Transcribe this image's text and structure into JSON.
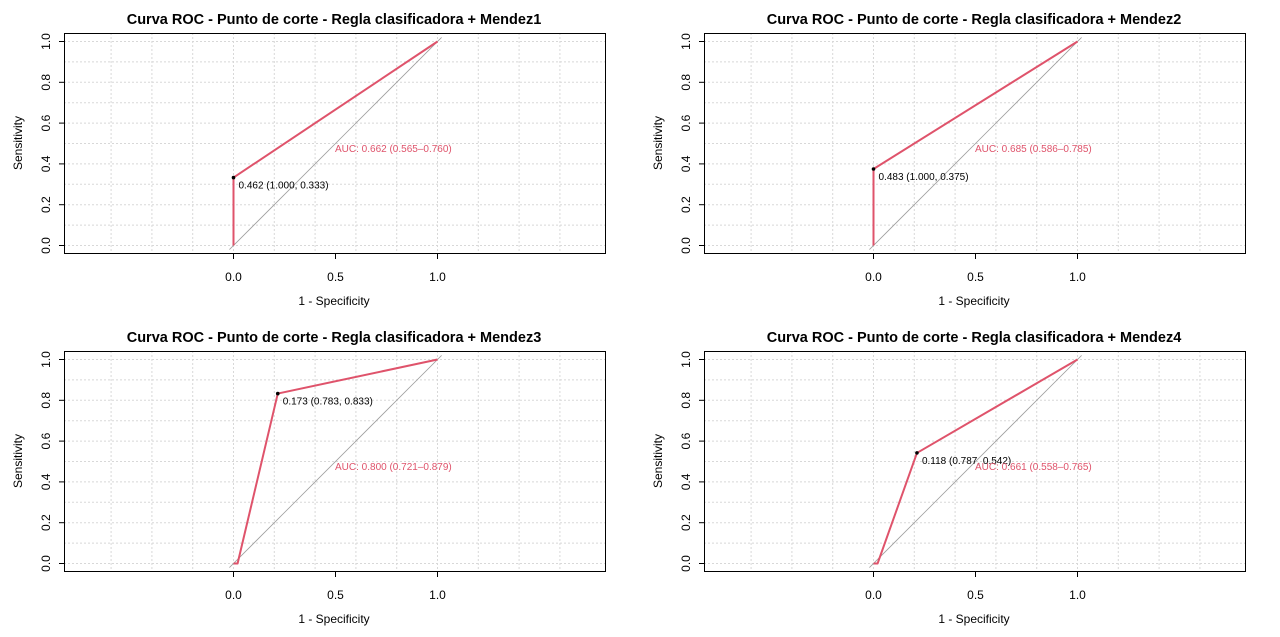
{
  "colors": {
    "curve": "#DF536B",
    "diagonal": "#9e9e9e",
    "grid": "#d8d8d8",
    "axis": "#000000"
  },
  "chart_data": [
    {
      "type": "line",
      "title": "Curva ROC - Punto de corte - Regla clasificadora + Mendez1",
      "xlabel": "1 - Specificity",
      "ylabel": "Sensitivity",
      "xlim": [
        -0.8,
        1.8
      ],
      "ylim": [
        0,
        1
      ],
      "x_ticks": [
        "0.0",
        "0.5",
        "1.0"
      ],
      "y_ticks": [
        "0.0",
        "0.2",
        "0.4",
        "0.6",
        "0.8",
        "1.0"
      ],
      "grid": true,
      "series": [
        {
          "x": [
            0.0,
            0.0,
            1.0
          ],
          "y": [
            0.0,
            0.333,
            1.0
          ]
        }
      ],
      "auc_label": "AUC: 0.662 (0.565–0.760)",
      "threshold": {
        "label": "0.462 (1.000, 0.333)",
        "x": 0.0,
        "y": 0.333
      }
    },
    {
      "type": "line",
      "title": "Curva ROC - Punto de corte - Regla clasificadora + Mendez2",
      "xlabel": "1 - Specificity",
      "ylabel": "Sensitivity",
      "xlim": [
        -0.8,
        1.8
      ],
      "ylim": [
        0,
        1
      ],
      "x_ticks": [
        "0.0",
        "0.5",
        "1.0"
      ],
      "y_ticks": [
        "0.0",
        "0.2",
        "0.4",
        "0.6",
        "0.8",
        "1.0"
      ],
      "grid": true,
      "series": [
        {
          "x": [
            0.0,
            0.0,
            1.0
          ],
          "y": [
            0.0,
            0.375,
            1.0
          ]
        }
      ],
      "auc_label": "AUC: 0.685 (0.586–0.785)",
      "threshold": {
        "label": "0.483 (1.000, 0.375)",
        "x": 0.0,
        "y": 0.375
      }
    },
    {
      "type": "line",
      "title": "Curva ROC - Punto de corte - Regla clasificadora + Mendez3",
      "xlabel": "1 - Specificity",
      "ylabel": "Sensitivity",
      "xlim": [
        -0.8,
        1.8
      ],
      "ylim": [
        0,
        1
      ],
      "x_ticks": [
        "0.0",
        "0.5",
        "1.0"
      ],
      "y_ticks": [
        "0.0",
        "0.2",
        "0.4",
        "0.6",
        "0.8",
        "1.0"
      ],
      "grid": true,
      "series": [
        {
          "x": [
            0.0,
            0.02,
            0.217,
            1.0
          ],
          "y": [
            0.0,
            0.0,
            0.833,
            1.0
          ]
        }
      ],
      "auc_label": "AUC: 0.800 (0.721–0.879)",
      "threshold": {
        "label": "0.173 (0.783, 0.833)",
        "x": 0.217,
        "y": 0.833
      }
    },
    {
      "type": "line",
      "title": "Curva ROC - Punto de corte - Regla clasificadora + Mendez4",
      "xlabel": "1 - Specificity",
      "ylabel": "Sensitivity",
      "xlim": [
        -0.8,
        1.8
      ],
      "ylim": [
        0,
        1
      ],
      "x_ticks": [
        "0.0",
        "0.5",
        "1.0"
      ],
      "y_ticks": [
        "0.0",
        "0.2",
        "0.4",
        "0.6",
        "0.8",
        "1.0"
      ],
      "grid": true,
      "series": [
        {
          "x": [
            0.0,
            0.02,
            0.213,
            1.0
          ],
          "y": [
            0.0,
            0.0,
            0.542,
            1.0
          ]
        }
      ],
      "auc_label": "AUC: 0.661 (0.558–0.765)",
      "threshold": {
        "label": "0.118 (0.787, 0.542)",
        "x": 0.213,
        "y": 0.542
      }
    }
  ]
}
